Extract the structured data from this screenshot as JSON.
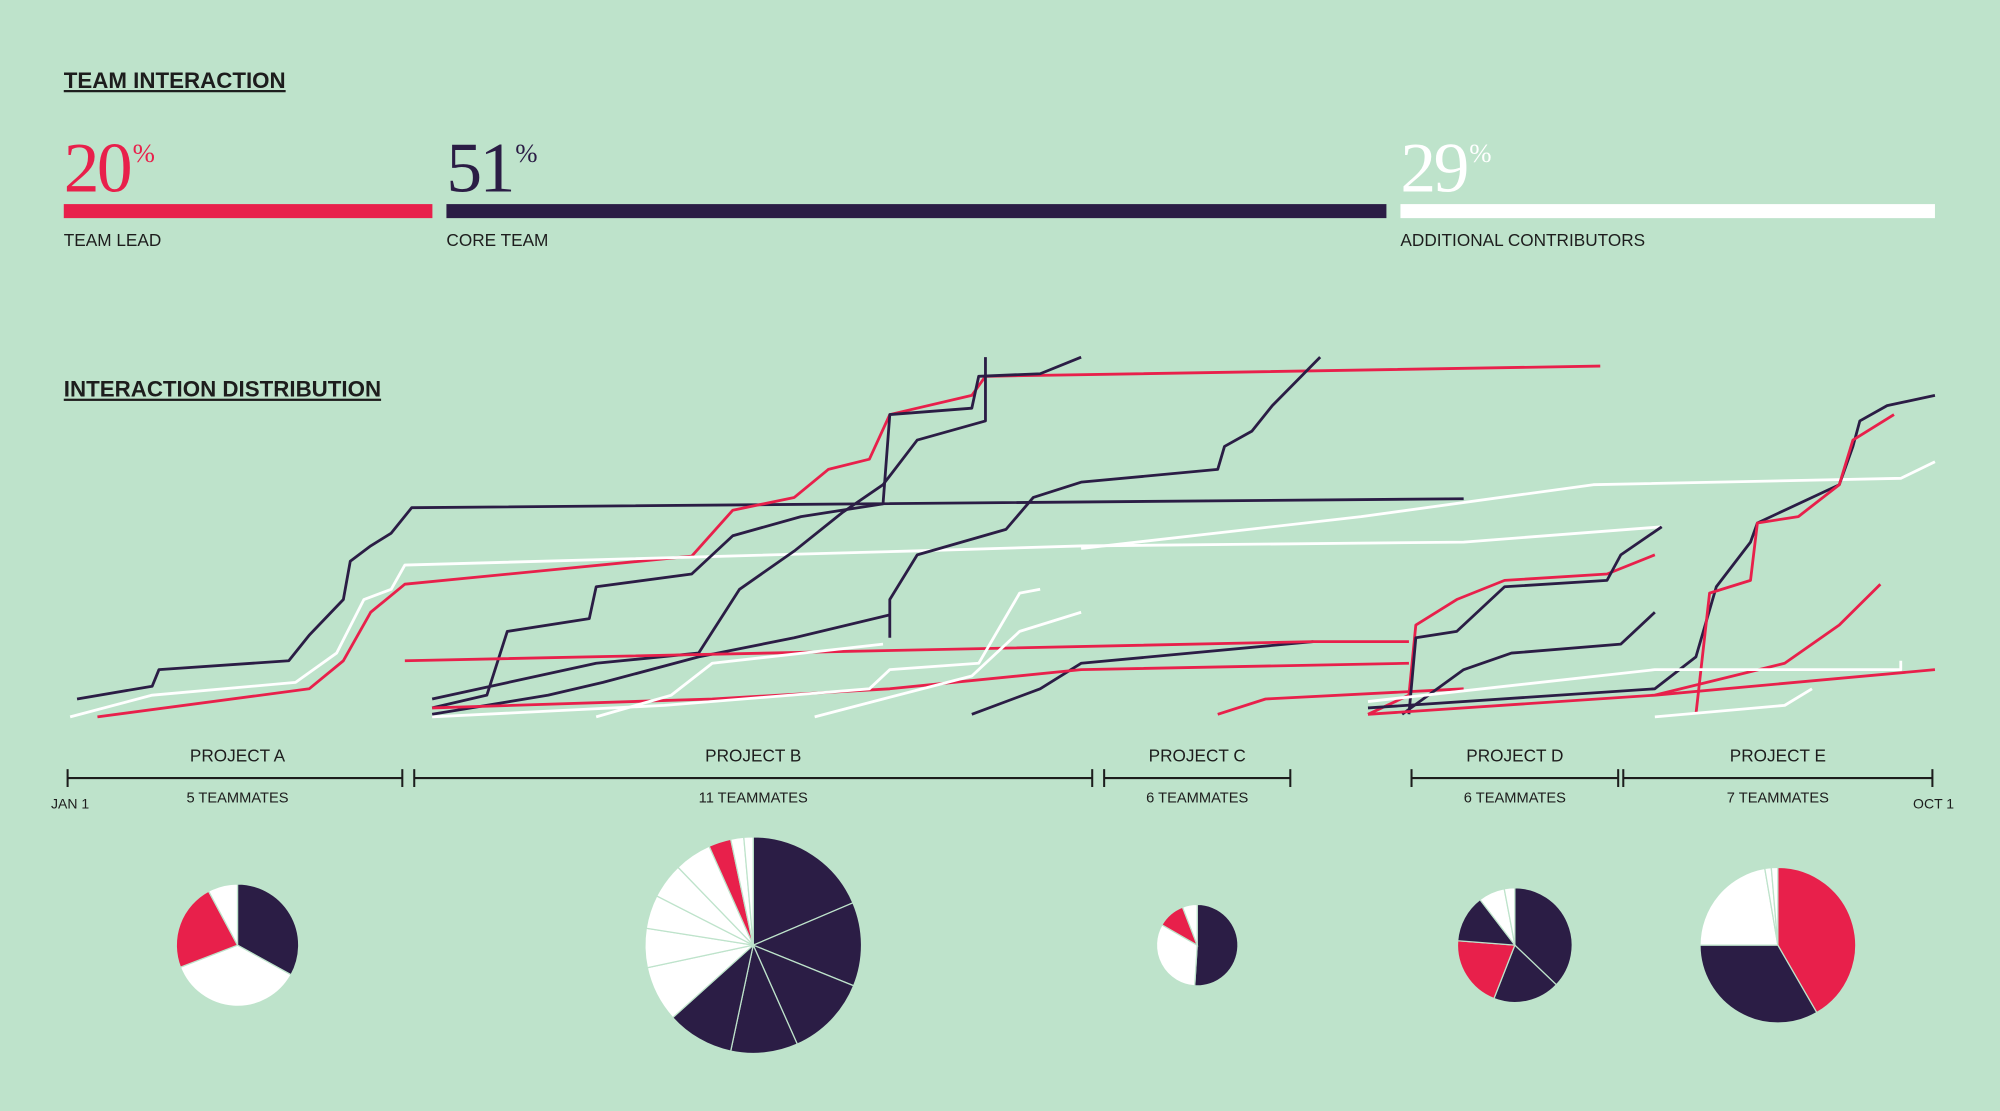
{
  "team_interaction": {
    "title": "TEAM INTERACTION",
    "unit": "%",
    "segments": [
      {
        "value": 20,
        "label": "TEAM LEAD",
        "color": "#e8204b"
      },
      {
        "value": 51,
        "label": "CORE TEAM",
        "color": "#2b1d45"
      },
      {
        "value": 29,
        "label": "ADDITIONAL CONTRIBUTORS",
        "color": "#ffffff"
      }
    ]
  },
  "interaction_distribution": {
    "title": "INTERACTION DISTRIBUTION",
    "start_label": "JAN 1",
    "end_label": "OCT 1",
    "xlim": [
      0,
      273
    ],
    "ylim": [
      0,
      285
    ],
    "lines": [
      {
        "color": "#2b1d45",
        "x": [
          1,
          12,
          13,
          32,
          35,
          40,
          41,
          44,
          47,
          50,
          204
        ],
        "values": [
          17,
          27,
          40,
          47,
          67,
          95,
          125,
          137,
          147,
          167,
          174
        ]
      },
      {
        "color": "#e8204b",
        "x": [
          4,
          35,
          40,
          44,
          49,
          91,
          97,
          106,
          111,
          117,
          120,
          132,
          134,
          224
        ],
        "values": [
          3,
          25,
          47,
          85,
          107,
          129,
          165,
          175,
          197,
          205,
          240,
          255,
          270,
          278
        ]
      },
      {
        "color": "#ffffff",
        "x": [
          0,
          12,
          33,
          39,
          43,
          47,
          49,
          123,
          148,
          204,
          233
        ],
        "values": [
          3,
          20,
          30,
          53,
          95,
          103,
          122,
          133,
          137,
          140,
          152
        ]
      },
      {
        "color": "#2b1d45",
        "x": [
          53,
          61,
          64,
          76,
          77,
          91,
          97,
          107,
          119,
          120,
          132,
          133,
          142,
          148
        ],
        "values": [
          10,
          20,
          70,
          80,
          105,
          115,
          145,
          160,
          170,
          240,
          245,
          270,
          272,
          285
        ]
      },
      {
        "color": "#2b1d45",
        "x": [
          53,
          77,
          92,
          98,
          106,
          113,
          119,
          124,
          134,
          134
        ],
        "values": [
          17,
          45,
          53,
          103,
          133,
          163,
          185,
          220,
          235,
          285
        ]
      },
      {
        "color": "#2b1d45",
        "x": [
          53,
          70,
          78,
          92,
          106,
          120
        ],
        "values": [
          5,
          20,
          30,
          50,
          65,
          83
        ]
      },
      {
        "color": "#2b1d45",
        "x": [
          120,
          120,
          124,
          137,
          141,
          148,
          168,
          169,
          173,
          176,
          183
        ],
        "values": [
          65,
          95,
          130,
          150,
          175,
          187,
          197,
          215,
          227,
          247,
          285
        ]
      },
      {
        "color": "#2b1d45",
        "x": [
          132,
          142,
          148,
          182
        ],
        "values": [
          5,
          25,
          45,
          62
        ]
      },
      {
        "color": "#e8204b",
        "x": [
          49,
          120,
          182,
          196
        ],
        "values": [
          47,
          55,
          62,
          62
        ]
      },
      {
        "color": "#e8204b",
        "x": [
          53,
          94,
          120,
          148,
          196
        ],
        "values": [
          10,
          17,
          25,
          40,
          45
        ]
      },
      {
        "color": "#ffffff",
        "x": [
          53,
          87,
          117,
          120,
          133,
          139,
          142
        ],
        "values": [
          3,
          12,
          25,
          40,
          45,
          100,
          103
        ]
      },
      {
        "color": "#ffffff",
        "x": [
          77,
          88,
          94,
          119
        ],
        "values": [
          3,
          20,
          45,
          60
        ]
      },
      {
        "color": "#ffffff",
        "x": [
          109,
          119,
          132,
          139,
          148
        ],
        "values": [
          3,
          17,
          35,
          70,
          85
        ]
      },
      {
        "color": "#ffffff",
        "x": [
          148,
          189,
          223,
          268,
          273
        ],
        "values": [
          135,
          160,
          185,
          190,
          203
        ]
      },
      {
        "color": "#e8204b",
        "x": [
          168,
          175,
          204
        ],
        "values": [
          5,
          17,
          25
        ]
      },
      {
        "color": "#e8204b",
        "x": [
          190,
          196,
          197,
          203,
          210,
          225,
          232
        ],
        "values": [
          5,
          20,
          75,
          95,
          110,
          115,
          130
        ]
      },
      {
        "color": "#2b1d45",
        "x": [
          195,
          204,
          211,
          227,
          232
        ],
        "values": [
          5,
          40,
          53,
          60,
          85
        ]
      },
      {
        "color": "#2b1d45",
        "x": [
          196,
          197,
          203,
          210,
          225,
          227,
          233
        ],
        "values": [
          5,
          65,
          70,
          105,
          110,
          130,
          152
        ]
      },
      {
        "color": "#2b1d45",
        "x": [
          190,
          232,
          238,
          241,
          246,
          247,
          259,
          261,
          262,
          266,
          273
        ],
        "values": [
          10,
          25,
          50,
          105,
          140,
          155,
          185,
          215,
          235,
          247,
          255
        ]
      },
      {
        "color": "#e8204b",
        "x": [
          238,
          240,
          246,
          247,
          253,
          259,
          261,
          267
        ],
        "values": [
          5,
          100,
          110,
          155,
          160,
          185,
          220,
          240
        ]
      },
      {
        "color": "#e8204b",
        "x": [
          232,
          251,
          259,
          265
        ],
        "values": [
          20,
          45,
          75,
          107
        ]
      },
      {
        "color": "#e8204b",
        "x": [
          190,
          232,
          273
        ],
        "values": [
          5,
          20,
          40
        ]
      },
      {
        "color": "#ffffff",
        "x": [
          232,
          251,
          255
        ],
        "values": [
          3,
          12,
          25
        ]
      },
      {
        "color": "#ffffff",
        "x": [
          190,
          232,
          268,
          268
        ],
        "values": [
          15,
          40,
          40,
          47
        ]
      }
    ],
    "projects": [
      {
        "name": "PROJECT A",
        "teammates": "5 TEAMMATES",
        "start": 0,
        "end": 49,
        "values": [
          76,
          83,
          53,
          18
        ],
        "colors": [
          "#2b1d45",
          "#ffffff",
          "#e8204b",
          "#ffffff"
        ]
      },
      {
        "name": "PROJECT B",
        "teammates": "11 TEAMMATES",
        "start": 50,
        "end": 150,
        "values": [
          134,
          90,
          88,
          72,
          72,
          60,
          42,
          36,
          38,
          40,
          24,
          14,
          10
        ],
        "colors": [
          "#2b1d45",
          "#2b1d45",
          "#2b1d45",
          "#2b1d45",
          "#2b1d45",
          "#ffffff",
          "#ffffff",
          "#ffffff",
          "#ffffff",
          "#ffffff",
          "#e8204b",
          "#ffffff",
          "#ffffff"
        ]
      },
      {
        "name": "PROJECT C",
        "teammates": "6 TEAMMATES",
        "start": 151,
        "end": 179,
        "values": [
          52,
          33,
          11,
          6
        ],
        "colors": [
          "#2b1d45",
          "#ffffff",
          "#e8204b",
          "#ffffff"
        ]
      },
      {
        "name": "PROJECT D",
        "teammates": "6 TEAMMATES",
        "start": 196,
        "end": 227,
        "values": [
          75,
          38,
          41,
          27,
          15,
          6
        ],
        "colors": [
          "#2b1d45",
          "#2b1d45",
          "#e8204b",
          "#2b1d45",
          "#ffffff",
          "#ffffff"
        ]
      },
      {
        "name": "PROJECT E",
        "teammates": "7 TEAMMATES",
        "start": 227,
        "end": 273,
        "values": [
          155,
          124,
          83,
          5,
          5
        ],
        "colors": [
          "#e8204b",
          "#2b1d45",
          "#ffffff",
          "#ffffff",
          "#ffffff"
        ]
      }
    ]
  }
}
